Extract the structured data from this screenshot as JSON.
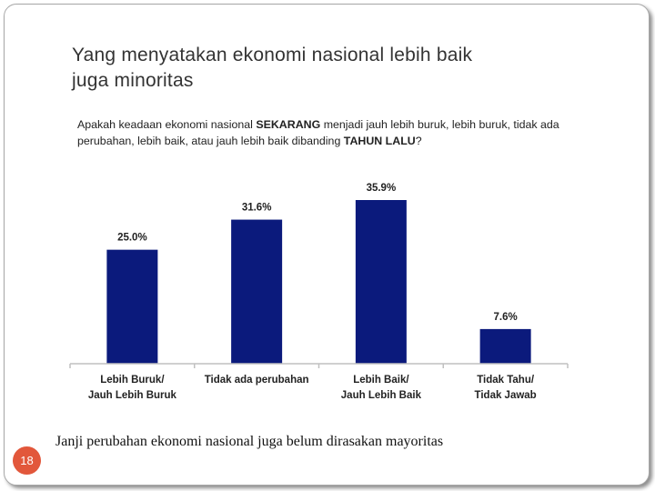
{
  "slide": {
    "title_line1": "Yang menyatakan ekonomi nasional lebih baik",
    "title_line2": "juga minoritas",
    "question": {
      "part1": "Apakah keadaan ekonomi nasional ",
      "bold1": "SEKARANG",
      "part2": " menjadi jauh lebih buruk, lebih buruk, tidak ada perubahan, lebih baik, atau jauh lebih baik dibanding ",
      "bold2": "TAHUN LALU",
      "part3": "?"
    },
    "footnote": "Janji perubahan ekonomi nasional juga belum dirasakan mayoritas",
    "page_number": "18"
  },
  "colors": {
    "bar": "#0b1a7c",
    "axis": "#c0c0c0",
    "text": "#222222",
    "page_badge": "#e2573b"
  },
  "chart_data": {
    "type": "bar",
    "categories": [
      [
        "Lebih Buruk/",
        "Jauh Lebih Buruk"
      ],
      [
        "Tidak ada perubahan"
      ],
      [
        "Lebih Baik/",
        "Jauh Lebih Baik"
      ],
      [
        "Tidak Tahu/",
        "Tidak Jawab"
      ]
    ],
    "values": [
      25.0,
      31.6,
      35.9,
      7.6
    ],
    "data_labels": [
      "25.0%",
      "31.6%",
      "35.9%",
      "7.6%"
    ],
    "title": "",
    "xlabel": "",
    "ylabel": "",
    "ylim": [
      0,
      35.9
    ],
    "grid": false,
    "legend": "none"
  }
}
